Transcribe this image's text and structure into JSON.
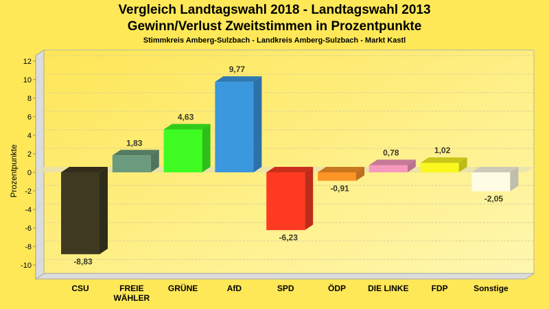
{
  "chart_data": {
    "type": "bar",
    "title": "Vergleich Landtagswahl 2018 - Landtagswahl 2013",
    "subtitle": "Gewinn/Verlust Zweitstimmen in Prozentpunkte",
    "subsubtitle": "Stimmkreis Amberg-Sulzbach - Landkreis Amberg-Sulzbach - Markt Kastl",
    "xlabel": "",
    "ylabel": "Prozentpunkte",
    "ylim": [
      -11.5,
      12.6
    ],
    "yticks": [
      12,
      10,
      8,
      6,
      4,
      2,
      0,
      -2,
      -4,
      -6,
      -8,
      -10
    ],
    "grid": true,
    "categories": [
      {
        "lines": [
          "CSU"
        ]
      },
      {
        "lines": [
          "FREIE",
          "WÄHLER"
        ]
      },
      {
        "lines": [
          "GRÜNE"
        ]
      },
      {
        "lines": [
          "AfD"
        ]
      },
      {
        "lines": [
          "SPD"
        ]
      },
      {
        "lines": [
          "ÖDP"
        ]
      },
      {
        "lines": [
          "DIE LINKE"
        ]
      },
      {
        "lines": [
          "FDP"
        ]
      },
      {
        "lines": [
          "Sonstige"
        ]
      }
    ],
    "values": [
      -8.83,
      1.83,
      4.63,
      9.77,
      -6.23,
      -0.91,
      0.78,
      1.02,
      -2.05
    ],
    "labels": [
      "-8,83",
      "1,83",
      "4,63",
      "9,77",
      "-6,23",
      "-0,91",
      "0,78",
      "1,02",
      "-2,05"
    ],
    "colors": [
      "#3e3a22",
      "#6c9a7e",
      "#3efc22",
      "#3b97de",
      "#fe3b22",
      "#fd9426",
      "#f799bc",
      "#fbf81f",
      "#fffce6"
    ]
  }
}
